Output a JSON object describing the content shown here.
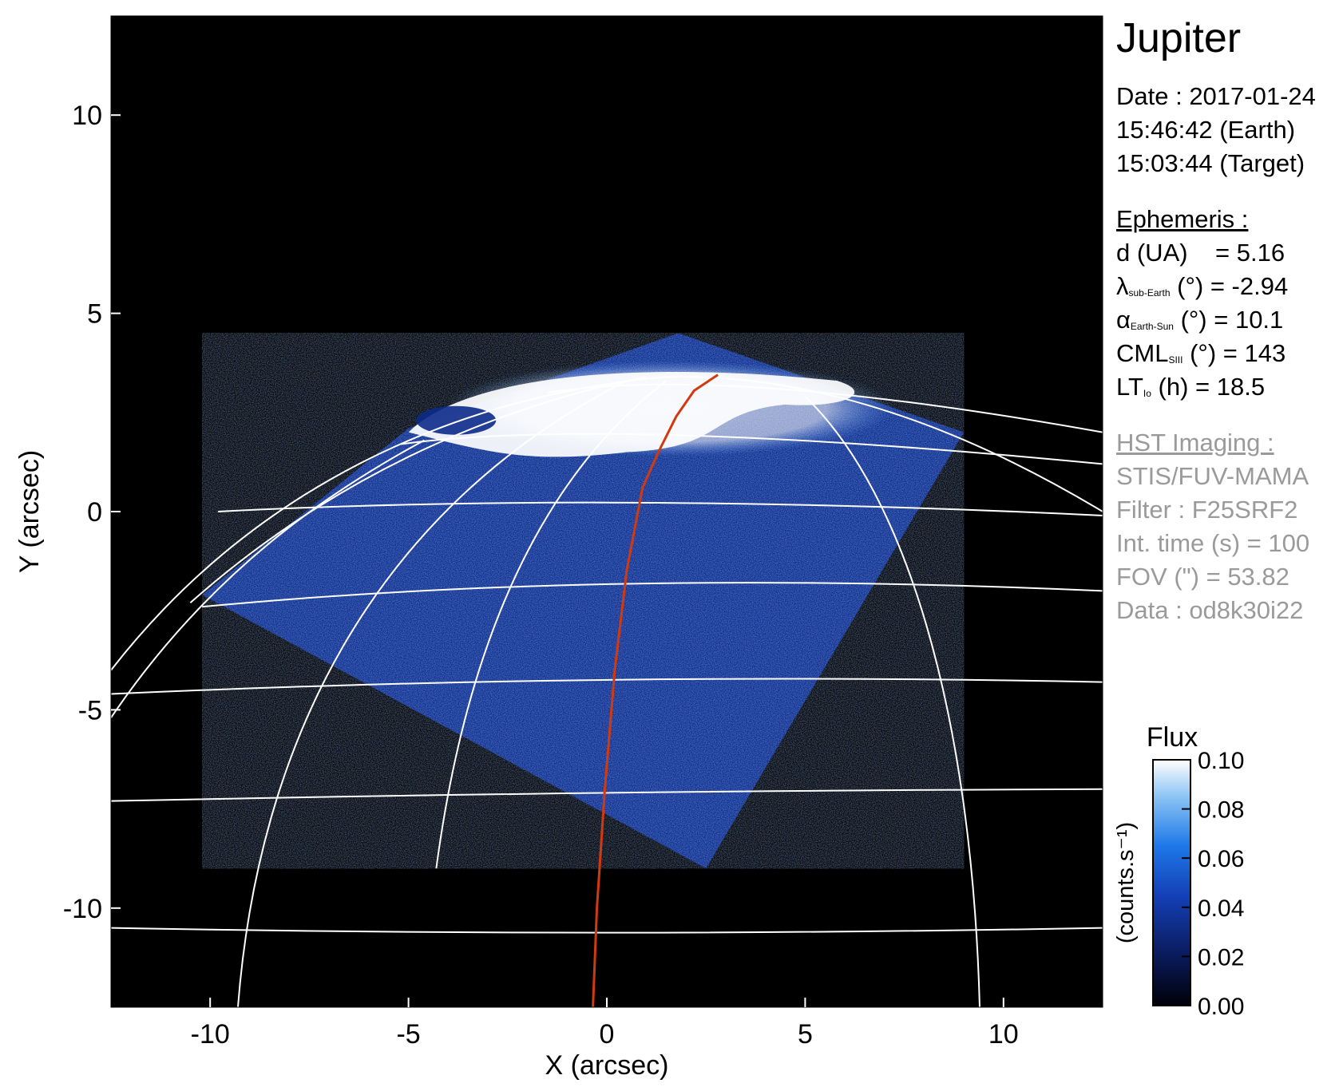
{
  "chart_data": {
    "type": "heatmap",
    "title": "",
    "xlabel": "X (arcsec)",
    "ylabel": "Y (arcsec)",
    "xlim": [
      -12.5,
      12.5
    ],
    "ylim": [
      -12.5,
      12.5
    ],
    "xticks": [
      -10,
      -5,
      0,
      5,
      10
    ],
    "yticks": [
      -10,
      -5,
      0,
      5,
      10
    ],
    "xtick_labels": [
      "-10",
      "-5",
      "0",
      "5",
      "10"
    ],
    "ytick_labels": [
      "-10",
      "-5",
      "0",
      "5",
      "10"
    ],
    "colorbar": {
      "title": "Flux",
      "label": "(counts.s⁻¹)",
      "range": [
        0.0,
        0.1
      ],
      "ticks": [
        0.0,
        0.02,
        0.04,
        0.06,
        0.08,
        0.1
      ],
      "tick_labels": [
        "0.00",
        "0.02",
        "0.04",
        "0.06",
        "0.08",
        "0.10"
      ]
    },
    "grid": true,
    "image_region_arcsec": [
      [
        -10.2,
        -2.1
      ],
      [
        -5.0,
        2.1
      ],
      [
        1.8,
        4.5
      ],
      [
        9.0,
        2.0
      ],
      [
        2.5,
        -9.0
      ]
    ],
    "auroral_oval_center_arcsec": [
      2.0,
      2.8
    ],
    "footprint_curve_arcsec": [
      [
        -0.35,
        -12.5
      ],
      [
        -0.25,
        -10.0
      ],
      [
        -0.05,
        -7.0
      ],
      [
        0.2,
        -4.0
      ],
      [
        0.5,
        -1.5
      ],
      [
        0.9,
        0.6
      ],
      [
        1.3,
        1.5
      ],
      [
        1.75,
        2.4
      ],
      [
        2.2,
        3.05
      ],
      [
        2.8,
        3.45
      ]
    ]
  },
  "info": {
    "planet": "Jupiter",
    "date_line": "Date : 2017-01-24",
    "time_earth": "15:46:42 (Earth)",
    "time_target": "15:03:44 (Target)",
    "ephemeris_header": "Ephemeris :",
    "d_label": "d (UA)",
    "d_value": "= 5.16",
    "lat_symbol": "λ",
    "lat_sub": "sub-Earth",
    "lat_value": "(°) = -2.94",
    "phase_symbol": "α",
    "phase_sub": "Earth-Sun",
    "phase_value": "(°) = 10.1",
    "cml_label": "CML",
    "cml_sub": "SIII",
    "cml_value": "(°) = 143",
    "lt_label": "LT",
    "lt_sub": "Io",
    "lt_value": "(h) = 18.5",
    "hst_header": "HST Imaging :",
    "instrument": "STIS/FUV-MAMA",
    "filter": "Filter : F25SRF2",
    "int_time": "Int. time (s) = 100",
    "fov": "FOV (\") = 53.82",
    "dataset": "Data : od8k30i22"
  },
  "colors": {
    "background": "#000000",
    "grid": "#ffffff",
    "footprint": "#d03a10",
    "flux_low": "#000010",
    "flux_mid": "#1f5fd6",
    "flux_high": "#ffffff"
  }
}
